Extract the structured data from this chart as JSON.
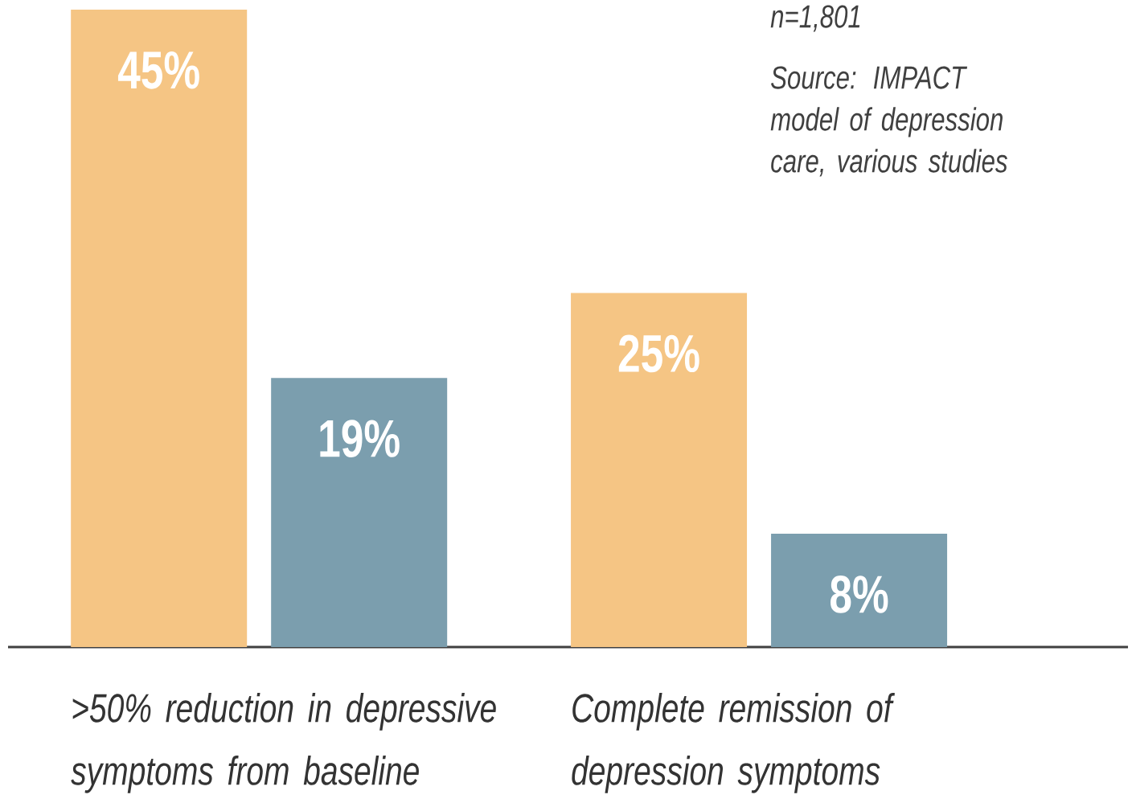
{
  "chart_data": {
    "type": "bar",
    "categories": [
      ">50% reduction in depressive symptoms from baseline",
      "Complete remission of depression symptoms"
    ],
    "series": [
      {
        "color": "#f5c584",
        "values": [
          45,
          25
        ],
        "value_labels": [
          "45%",
          "25%"
        ]
      },
      {
        "color": "#7b9eae",
        "values": [
          19,
          8
        ],
        "value_labels": [
          "19%",
          "8%"
        ]
      }
    ],
    "annotations": [
      "n=1,801",
      "Source: IMPACT model of depression care, various studies"
    ]
  }
}
